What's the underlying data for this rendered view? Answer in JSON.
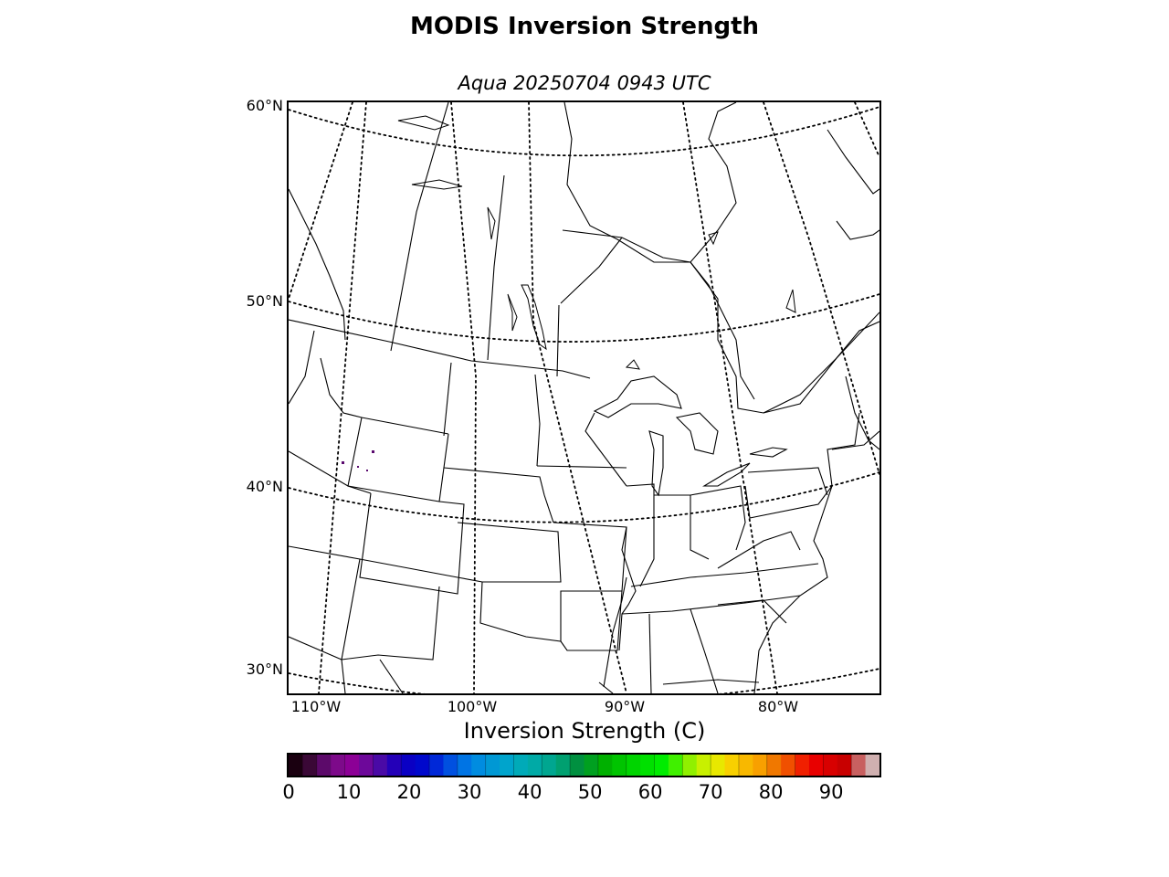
{
  "title": "MODIS Inversion Strength",
  "subtitle": "Aqua 20250704 0943 UTC",
  "map": {
    "lat_labels": [
      "60°N",
      "50°N",
      "40°N",
      "30°N"
    ],
    "lon_labels": [
      "110°W",
      "100°W",
      "90°W",
      "80°W"
    ],
    "colors": {
      "coast": "#000000",
      "data_point": "#5a0a6e"
    }
  },
  "colorbar": {
    "title": "Inversion Strength (C)",
    "ticks": [
      "0",
      "10",
      "20",
      "30",
      "40",
      "50",
      "60",
      "70",
      "80",
      "90"
    ],
    "range": [
      0,
      98
    ],
    "colors": [
      "#1a0010",
      "#3a0836",
      "#5c0a6a",
      "#7d0a8a",
      "#8c0096",
      "#6d089a",
      "#4a0aa6",
      "#2400b8",
      "#0a00c4",
      "#0008cc",
      "#0028d8",
      "#0050e0",
      "#0074e4",
      "#008ce0",
      "#0098d4",
      "#00a4cc",
      "#00aab8",
      "#00aaa6",
      "#00a690",
      "#00a070",
      "#009040",
      "#00a020",
      "#00b000",
      "#00c400",
      "#00d400",
      "#00e000",
      "#00ec00",
      "#40f000",
      "#90f000",
      "#c8f000",
      "#e8e800",
      "#f8d000",
      "#f8b800",
      "#f8a000",
      "#f07800",
      "#f05000",
      "#f02000",
      "#e80000",
      "#d80000",
      "#c80000",
      "#c86060",
      "#d0b0b0"
    ]
  }
}
